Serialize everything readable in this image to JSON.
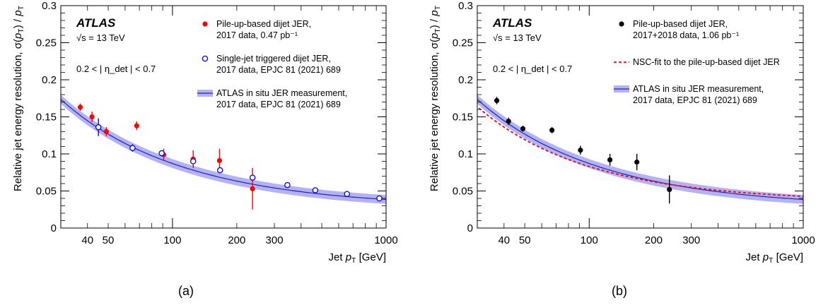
{
  "panels": [
    {
      "caption": "(a)",
      "atlas": "ATLAS",
      "energy": "√s = 13 TeV",
      "eta_range": "0.2 < | η_det | < 0.7",
      "legend": [
        {
          "label": [
            "Pile-up-based dijet JER,",
            "2017 data, 0.47 pb⁻¹"
          ]
        },
        {
          "label": [
            "Single-jet triggered dijet JER,",
            "2017 data, EPJC 81 (2021) 689"
          ]
        },
        {
          "label": [
            "ATLAS in situ JER measurement,",
            "2017 data, EPJC 81 (2021) 689"
          ]
        }
      ]
    },
    {
      "caption": "(b)",
      "atlas": "ATLAS",
      "energy": "√s = 13 TeV",
      "eta_range": "0.2 < | η_det | < 0.7",
      "legend": [
        {
          "label": [
            "Pile-up-based dijet JER,",
            "2017+2018 data, 1.06 pb⁻¹"
          ]
        },
        {
          "label": [
            "NSC-fit to the pile-up-based dijet JER"
          ]
        },
        {
          "label": [
            "ATLAS in situ JER measurement,",
            "2017 data, EPJC 81 (2021) 689"
          ]
        }
      ]
    }
  ],
  "chart_data": [
    {
      "type": "scatter",
      "xlabel": "Jet p_T [GeV]",
      "ylabel": "Relative jet energy resolution, σ(p_T) / p_T",
      "x_scale": "log",
      "xlim": [
        30,
        1000
      ],
      "ylim": [
        0,
        0.3
      ],
      "x_ticks": [
        40,
        50,
        100,
        200,
        300,
        1000
      ],
      "y_ticks": [
        0,
        0.05,
        0.1,
        0.15,
        0.2,
        0.25,
        0.3
      ],
      "series": [
        {
          "name": "Pile-up-based dijet JER, 2017 data, 0.47 pb⁻¹",
          "color": "#ff0000",
          "marker": "filled-circle",
          "points": [
            {
              "x": 37,
              "y": 0.163,
              "err": 0.005
            },
            {
              "x": 42,
              "y": 0.15,
              "err": 0.007
            },
            {
              "x": 49,
              "y": 0.13,
              "err": 0.006
            },
            {
              "x": 68,
              "y": 0.138,
              "err": 0.006
            },
            {
              "x": 91,
              "y": 0.099,
              "err": 0.008
            },
            {
              "x": 125,
              "y": 0.093,
              "err": 0.012
            },
            {
              "x": 166,
              "y": 0.091,
              "err": 0.016
            },
            {
              "x": 237,
              "y": 0.053,
              "err": 0.028
            }
          ]
        },
        {
          "name": "Single-jet triggered dijet JER, 2017 data, EPJC 81 (2021) 689",
          "color": "#0000ff",
          "marker": "open-circle",
          "points": [
            {
              "x": 45,
              "y": 0.136,
              "err": 0.012
            },
            {
              "x": 65,
              "y": 0.108,
              "err": 0.005
            },
            {
              "x": 89,
              "y": 0.101,
              "err": 0.004
            },
            {
              "x": 125,
              "y": 0.09,
              "err": 0.003
            },
            {
              "x": 167,
              "y": 0.078,
              "err": 0.002
            },
            {
              "x": 237,
              "y": 0.068,
              "err": 0.002
            },
            {
              "x": 345,
              "y": 0.058,
              "err": 0.001
            },
            {
              "x": 466,
              "y": 0.051,
              "err": 0.001
            },
            {
              "x": 656,
              "y": 0.046,
              "err": 0.001
            },
            {
              "x": 930,
              "y": 0.04,
              "err": 0.001
            }
          ]
        },
        {
          "name": "ATLAS in situ JER measurement, 2017 data, EPJC 81 (2021) 689",
          "color": "#1f1fd6",
          "band_color": "#9a9af0",
          "kind": "band",
          "fit": {
            "N": 3.0,
            "S": 0.76,
            "C": 0.03
          },
          "band_halfwidth": 0.006
        }
      ]
    },
    {
      "type": "scatter",
      "xlabel": "Jet p_T [GeV]",
      "ylabel": "Relative jet energy resolution, σ(p_T) / p_T",
      "x_scale": "log",
      "xlim": [
        30,
        1000
      ],
      "ylim": [
        0,
        0.3
      ],
      "x_ticks": [
        40,
        50,
        100,
        200,
        300,
        1000
      ],
      "y_ticks": [
        0,
        0.05,
        0.1,
        0.15,
        0.2,
        0.25,
        0.3
      ],
      "series": [
        {
          "name": "Pile-up-based dijet JER, 2017+2018 data, 1.06 pb⁻¹",
          "color": "#000000",
          "marker": "filled-circle",
          "points": [
            {
              "x": 37,
              "y": 0.172,
              "err": 0.005
            },
            {
              "x": 42,
              "y": 0.144,
              "err": 0.005
            },
            {
              "x": 49,
              "y": 0.134,
              "err": 0.004
            },
            {
              "x": 67,
              "y": 0.132,
              "err": 0.004
            },
            {
              "x": 91,
              "y": 0.105,
              "err": 0.006
            },
            {
              "x": 125,
              "y": 0.092,
              "err": 0.008
            },
            {
              "x": 167,
              "y": 0.089,
              "err": 0.011
            },
            {
              "x": 237,
              "y": 0.052,
              "err": 0.019
            }
          ]
        },
        {
          "name": "NSC-fit to the pile-up-based dijet JER",
          "color": "#ff0000",
          "kind": "dashed-line",
          "fit": {
            "N": 3.0,
            "S": 0.68,
            "C": 0.037
          }
        },
        {
          "name": "ATLAS in situ JER measurement, 2017 data, EPJC 81 (2021) 689",
          "color": "#1f1fd6",
          "band_color": "#9a9af0",
          "kind": "band",
          "fit": {
            "N": 3.0,
            "S": 0.76,
            "C": 0.03
          },
          "band_halfwidth": 0.006
        }
      ]
    }
  ]
}
